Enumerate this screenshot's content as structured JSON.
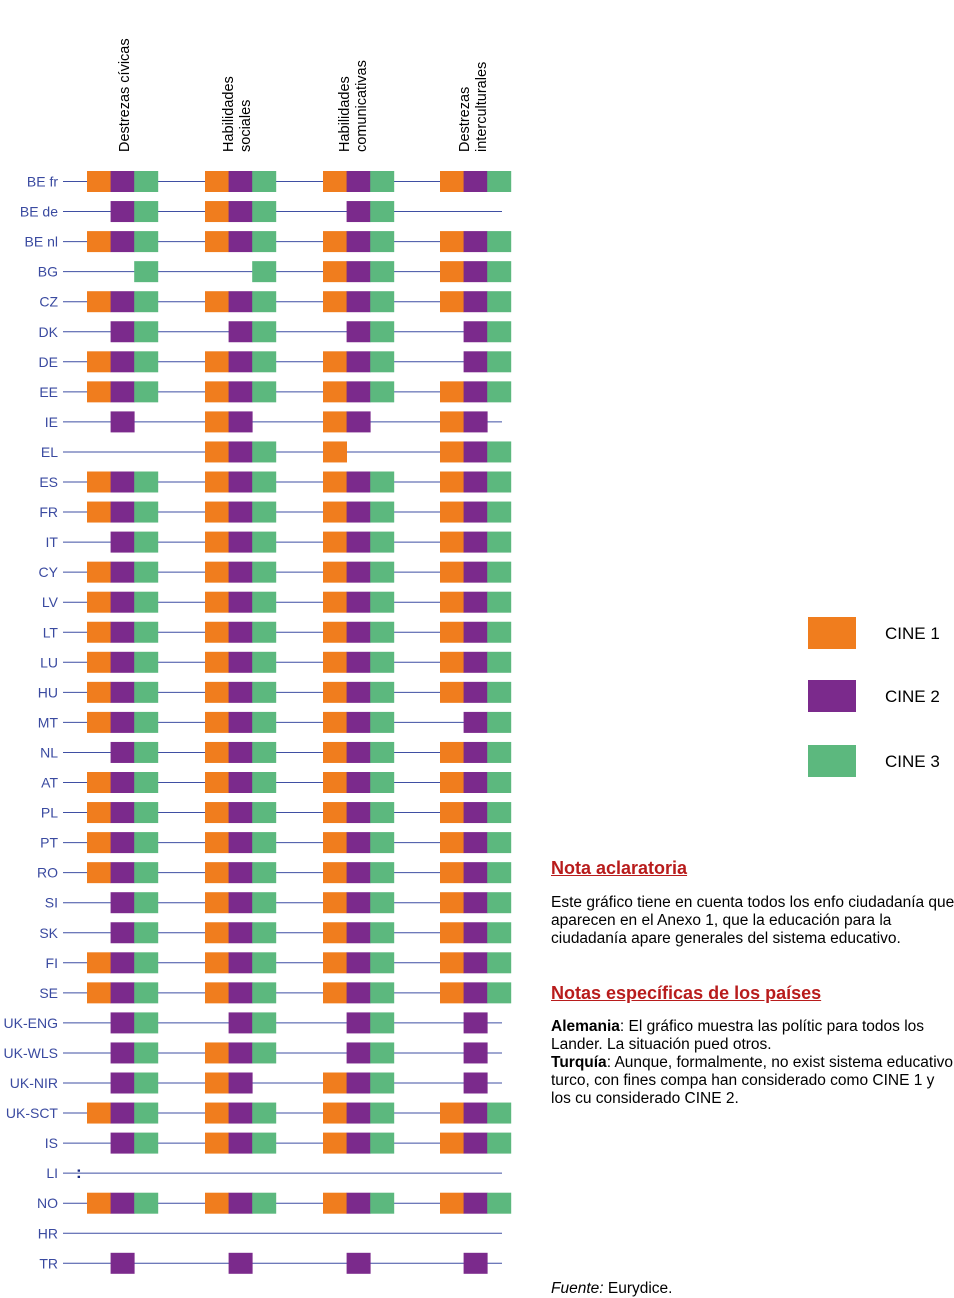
{
  "chart_data": {
    "type": "table",
    "columns": [
      "Destrezas cívicas",
      "Habilidades sociales",
      "Habilidades comunicativas",
      "Destrezas interculturales"
    ],
    "column_labels": [
      [
        "Destrezas cívicas"
      ],
      [
        "Habilidades",
        "sociales"
      ],
      [
        "Habilidades",
        "comunicativas"
      ],
      [
        "Destrezas",
        "interculturales"
      ]
    ],
    "levels": [
      "CINE 1",
      "CINE 2",
      "CINE 3"
    ],
    "rows": [
      {
        "country": "BE fr",
        "cells": [
          [
            1,
            1,
            1
          ],
          [
            1,
            1,
            1
          ],
          [
            1,
            1,
            1
          ],
          [
            1,
            1,
            1
          ]
        ]
      },
      {
        "country": "BE de",
        "cells": [
          [
            0,
            1,
            1
          ],
          [
            1,
            1,
            1
          ],
          [
            0,
            1,
            1
          ],
          [
            0,
            0,
            0
          ]
        ]
      },
      {
        "country": "BE nl",
        "cells": [
          [
            1,
            1,
            1
          ],
          [
            1,
            1,
            1
          ],
          [
            1,
            1,
            1
          ],
          [
            1,
            1,
            1
          ]
        ]
      },
      {
        "country": "BG",
        "cells": [
          [
            0,
            0,
            1
          ],
          [
            0,
            0,
            1
          ],
          [
            1,
            1,
            1
          ],
          [
            1,
            1,
            1
          ]
        ]
      },
      {
        "country": "CZ",
        "cells": [
          [
            1,
            1,
            1
          ],
          [
            1,
            1,
            1
          ],
          [
            1,
            1,
            1
          ],
          [
            1,
            1,
            1
          ]
        ]
      },
      {
        "country": "DK",
        "cells": [
          [
            0,
            1,
            1
          ],
          [
            0,
            1,
            1
          ],
          [
            0,
            1,
            1
          ],
          [
            0,
            1,
            1
          ]
        ]
      },
      {
        "country": "DE",
        "cells": [
          [
            1,
            1,
            1
          ],
          [
            1,
            1,
            1
          ],
          [
            1,
            1,
            1
          ],
          [
            0,
            1,
            1
          ]
        ]
      },
      {
        "country": "EE",
        "cells": [
          [
            1,
            1,
            1
          ],
          [
            1,
            1,
            1
          ],
          [
            1,
            1,
            1
          ],
          [
            1,
            1,
            1
          ]
        ]
      },
      {
        "country": "IE",
        "cells": [
          [
            0,
            1,
            0
          ],
          [
            1,
            1,
            0
          ],
          [
            1,
            1,
            0
          ],
          [
            1,
            1,
            0
          ]
        ]
      },
      {
        "country": "EL",
        "cells": [
          [
            0,
            0,
            0
          ],
          [
            1,
            1,
            1
          ],
          [
            1,
            0,
            0
          ],
          [
            1,
            1,
            1
          ]
        ]
      },
      {
        "country": "ES",
        "cells": [
          [
            1,
            1,
            1
          ],
          [
            1,
            1,
            1
          ],
          [
            1,
            1,
            1
          ],
          [
            1,
            1,
            1
          ]
        ]
      },
      {
        "country": "FR",
        "cells": [
          [
            1,
            1,
            1
          ],
          [
            1,
            1,
            1
          ],
          [
            1,
            1,
            1
          ],
          [
            1,
            1,
            1
          ]
        ]
      },
      {
        "country": "IT",
        "cells": [
          [
            0,
            1,
            1
          ],
          [
            1,
            1,
            1
          ],
          [
            1,
            1,
            1
          ],
          [
            1,
            1,
            1
          ]
        ]
      },
      {
        "country": "CY",
        "cells": [
          [
            1,
            1,
            1
          ],
          [
            1,
            1,
            1
          ],
          [
            1,
            1,
            1
          ],
          [
            1,
            1,
            1
          ]
        ]
      },
      {
        "country": "LV",
        "cells": [
          [
            1,
            1,
            1
          ],
          [
            1,
            1,
            1
          ],
          [
            1,
            1,
            1
          ],
          [
            1,
            1,
            1
          ]
        ]
      },
      {
        "country": "LT",
        "cells": [
          [
            1,
            1,
            1
          ],
          [
            1,
            1,
            1
          ],
          [
            1,
            1,
            1
          ],
          [
            1,
            1,
            1
          ]
        ]
      },
      {
        "country": "LU",
        "cells": [
          [
            1,
            1,
            1
          ],
          [
            1,
            1,
            1
          ],
          [
            1,
            1,
            1
          ],
          [
            1,
            1,
            1
          ]
        ]
      },
      {
        "country": "HU",
        "cells": [
          [
            1,
            1,
            1
          ],
          [
            1,
            1,
            1
          ],
          [
            1,
            1,
            1
          ],
          [
            1,
            1,
            1
          ]
        ]
      },
      {
        "country": "MT",
        "cells": [
          [
            1,
            1,
            1
          ],
          [
            1,
            1,
            1
          ],
          [
            1,
            1,
            1
          ],
          [
            0,
            1,
            1
          ]
        ]
      },
      {
        "country": "NL",
        "cells": [
          [
            0,
            1,
            1
          ],
          [
            1,
            1,
            1
          ],
          [
            1,
            1,
            1
          ],
          [
            1,
            1,
            1
          ]
        ]
      },
      {
        "country": "AT",
        "cells": [
          [
            1,
            1,
            1
          ],
          [
            1,
            1,
            1
          ],
          [
            1,
            1,
            1
          ],
          [
            1,
            1,
            1
          ]
        ]
      },
      {
        "country": "PL",
        "cells": [
          [
            1,
            1,
            1
          ],
          [
            1,
            1,
            1
          ],
          [
            1,
            1,
            1
          ],
          [
            1,
            1,
            1
          ]
        ]
      },
      {
        "country": "PT",
        "cells": [
          [
            1,
            1,
            1
          ],
          [
            1,
            1,
            1
          ],
          [
            1,
            1,
            1
          ],
          [
            1,
            1,
            1
          ]
        ]
      },
      {
        "country": "RO",
        "cells": [
          [
            1,
            1,
            1
          ],
          [
            1,
            1,
            1
          ],
          [
            1,
            1,
            1
          ],
          [
            1,
            1,
            1
          ]
        ]
      },
      {
        "country": "SI",
        "cells": [
          [
            0,
            1,
            1
          ],
          [
            1,
            1,
            1
          ],
          [
            1,
            1,
            1
          ],
          [
            1,
            1,
            1
          ]
        ]
      },
      {
        "country": "SK",
        "cells": [
          [
            0,
            1,
            1
          ],
          [
            1,
            1,
            1
          ],
          [
            1,
            1,
            1
          ],
          [
            1,
            1,
            1
          ]
        ]
      },
      {
        "country": "FI",
        "cells": [
          [
            1,
            1,
            1
          ],
          [
            1,
            1,
            1
          ],
          [
            1,
            1,
            1
          ],
          [
            1,
            1,
            1
          ]
        ]
      },
      {
        "country": "SE",
        "cells": [
          [
            1,
            1,
            1
          ],
          [
            1,
            1,
            1
          ],
          [
            1,
            1,
            1
          ],
          [
            1,
            1,
            1
          ]
        ]
      },
      {
        "country": "UK-ENG",
        "cells": [
          [
            0,
            1,
            1
          ],
          [
            0,
            1,
            1
          ],
          [
            0,
            1,
            1
          ],
          [
            0,
            1,
            0
          ]
        ]
      },
      {
        "country": "UK-WLS",
        "cells": [
          [
            0,
            1,
            1
          ],
          [
            1,
            1,
            1
          ],
          [
            0,
            1,
            1
          ],
          [
            0,
            1,
            0
          ]
        ]
      },
      {
        "country": "UK-NIR",
        "cells": [
          [
            0,
            1,
            1
          ],
          [
            1,
            1,
            0
          ],
          [
            1,
            1,
            1
          ],
          [
            0,
            1,
            0
          ]
        ]
      },
      {
        "country": "UK-SCT",
        "cells": [
          [
            1,
            1,
            1
          ],
          [
            1,
            1,
            1
          ],
          [
            1,
            1,
            1
          ],
          [
            1,
            1,
            1
          ]
        ]
      },
      {
        "country": "IS",
        "cells": [
          [
            0,
            1,
            1
          ],
          [
            1,
            1,
            1
          ],
          [
            1,
            1,
            1
          ],
          [
            1,
            1,
            1
          ]
        ]
      },
      {
        "country": "LI",
        "cells": [
          [
            0,
            0,
            0
          ],
          [
            0,
            0,
            0
          ],
          [
            0,
            0,
            0
          ],
          [
            0,
            0,
            0
          ]
        ],
        "missing_marker": ":"
      },
      {
        "country": "NO",
        "cells": [
          [
            1,
            1,
            1
          ],
          [
            1,
            1,
            1
          ],
          [
            1,
            1,
            1
          ],
          [
            1,
            1,
            1
          ]
        ]
      },
      {
        "country": "HR",
        "cells": [
          [
            0,
            0,
            0
          ],
          [
            0,
            0,
            0
          ],
          [
            0,
            0,
            0
          ],
          [
            0,
            0,
            0
          ]
        ]
      },
      {
        "country": "TR",
        "cells": [
          [
            0,
            1,
            0
          ],
          [
            0,
            1,
            0
          ],
          [
            0,
            1,
            0
          ],
          [
            0,
            1,
            0
          ]
        ]
      }
    ],
    "legend": [
      {
        "label": "CINE 1",
        "color": "#f07d1e"
      },
      {
        "label": "CINE 2",
        "color": "#7b2a8c"
      },
      {
        "label": "CINE 3",
        "color": "#5cb87e"
      }
    ],
    "line_color": "#3f4fa3",
    "label_color": "#3a4aa0"
  },
  "notes": {
    "heading_1": "Nota aclaratoria",
    "para_1": "Este gráfico tiene en cuenta todos los enfo ciudadanía que aparecen en el Anexo 1, que la educación para la ciudadanía apare generales del sistema educativo.",
    "heading_2": "Notas específicas de los países",
    "para_2_bold": "Alemania",
    "para_2": ": El gráfico muestra las polític para todos los Lander. La situación pued otros.",
    "para_3_bold": "Turquía",
    "para_3": ": Aunque, formalmente, no exist sistema educativo turco, con fines compa han considerado como CINE 1 y los cu considerado CINE 2.",
    "source_label": "Fuente:",
    "source_value": " Eurydice."
  }
}
